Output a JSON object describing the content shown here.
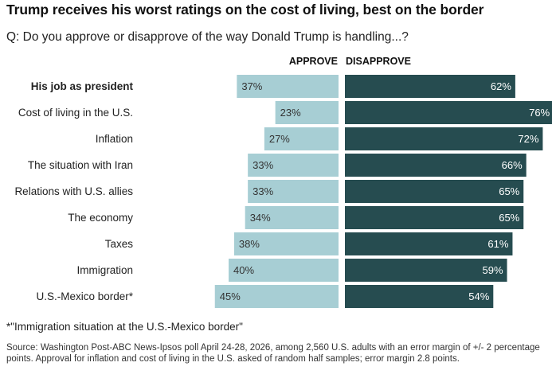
{
  "title": "Trump receives his worst ratings on the cost of living, best on the border",
  "subtitle": "Q: Do you approve or disapprove of the way Donald Trump is handling...?",
  "colors": {
    "approve": "#a7ced4",
    "disapprove": "#264c50",
    "approve_text": "#333333",
    "disapprove_text": "#ffffff"
  },
  "chart_data": {
    "type": "bar",
    "orientation": "horizontal-diverging",
    "categories": [
      "His job as president",
      "Cost of living in the U.S.",
      "Inflation",
      "The situation with Iran",
      "Relations with U.S. allies",
      "The economy",
      "Taxes",
      "Immigration",
      "U.S.-Mexico border*"
    ],
    "emphasized_category": "His job as president",
    "series": [
      {
        "name": "APPROVE",
        "values": [
          37,
          23,
          27,
          33,
          33,
          34,
          38,
          40,
          45
        ]
      },
      {
        "name": "DISAPPROVE",
        "values": [
          62,
          76,
          72,
          66,
          65,
          65,
          61,
          59,
          54
        ]
      }
    ],
    "value_suffix": "%"
  },
  "note": "*\"Immigration situation at the U.S.-Mexico border\"",
  "source": "Source: Washington Post-ABC News-Ipsos poll April 24-28, 2026, among 2,560 U.S. adults with an error margin of +/- 2 percentage points. Approval for inflation and cost of living in the U.S. asked of random half samples; error margin 2.8 points."
}
